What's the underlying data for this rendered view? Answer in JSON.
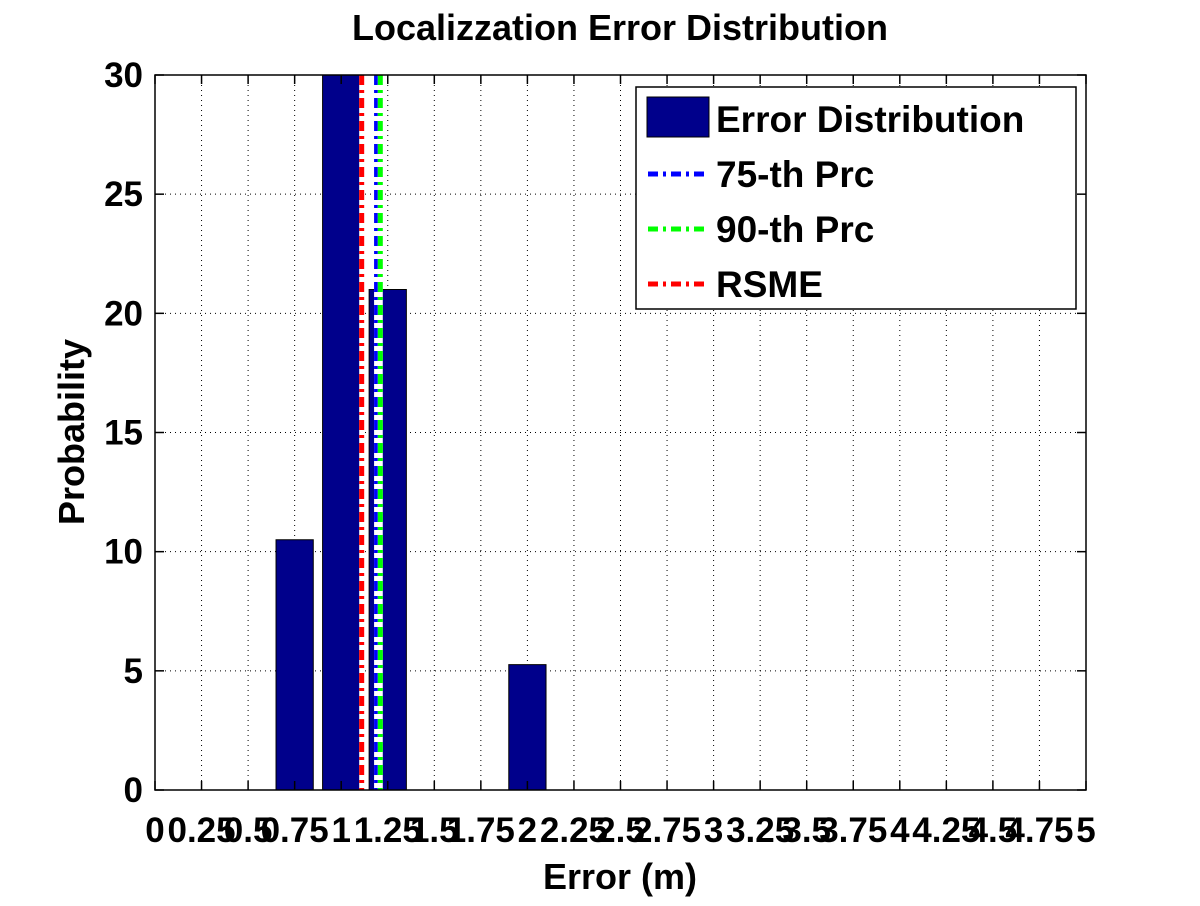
{
  "chart_data": {
    "type": "bar",
    "title": "Localizzation Error Distribution",
    "xlabel": "Error (m)",
    "ylabel": "Probability",
    "xlim": [
      0,
      5
    ],
    "ylim": [
      0,
      30
    ],
    "xticks": [
      0,
      0.25,
      0.5,
      0.75,
      1,
      1.25,
      1.5,
      1.75,
      2,
      2.25,
      2.5,
      2.75,
      3,
      3.25,
      3.5,
      3.75,
      4,
      4.25,
      4.5,
      4.75,
      5
    ],
    "xtick_labels": [
      "0",
      "0.25",
      "0.5",
      "0.75",
      "1",
      "1.25",
      "1.5",
      "1.75",
      "2",
      "2.25",
      "2.5",
      "2.75",
      "3",
      "3.25",
      "3.5",
      "3.75",
      "4",
      "4.25",
      "4.5",
      "4.75",
      "5"
    ],
    "yticks": [
      0,
      5,
      10,
      15,
      20,
      25,
      30
    ],
    "ytick_labels": [
      "0",
      "5",
      "10",
      "15",
      "20",
      "25",
      "30"
    ],
    "grid": true,
    "legend_position": "top-right",
    "bars": [
      {
        "x": 0.75,
        "value": 10.5
      },
      {
        "x": 1.0,
        "value": 30
      },
      {
        "x": 1.25,
        "value": 21
      },
      {
        "x": 2.0,
        "value": 5.26
      }
    ],
    "bar_width": 0.2,
    "bar_series": {
      "name": "Error Distribution",
      "color": "#00008B"
    },
    "vlines": [
      {
        "name": "75-th Prc",
        "x": 1.19,
        "color": "#0000FF"
      },
      {
        "name": "90-th Prc",
        "x": 1.21,
        "color": "#00FF00"
      },
      {
        "name": "RSME",
        "x": 1.11,
        "color": "#FF0000"
      }
    ]
  }
}
